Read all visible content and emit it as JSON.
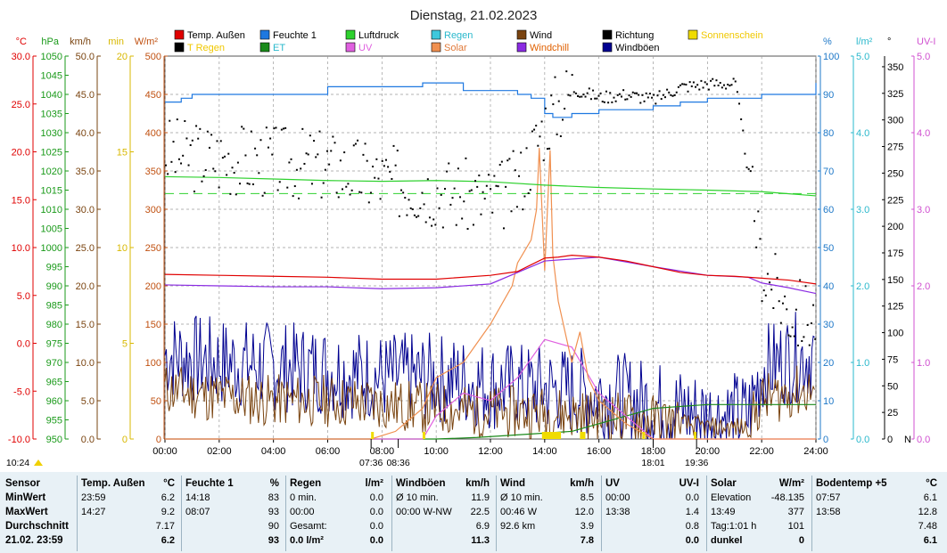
{
  "title": "Dienstag, 21.02.2023",
  "axis_units": {
    "temp": "°C",
    "hpa": "hPa",
    "kmh": "km/h",
    "min": "min",
    "wm2": "W/m²",
    "pct": "%",
    "lm2": "l/m²",
    "deg": "°",
    "uvi": "UV-I"
  },
  "axis_ticks": {
    "temp": [
      "30.0",
      "25.0",
      "20.0",
      "15.0",
      "10.0",
      "5.0",
      "0.0",
      "-5.0",
      "-10.0"
    ],
    "hpa": [
      "1050",
      "1045",
      "1040",
      "1035",
      "1030",
      "1025",
      "1020",
      "1015",
      "1010",
      "1005",
      "1000",
      "995",
      "990",
      "985",
      "980",
      "975",
      "970",
      "965",
      "960",
      "955",
      "950"
    ],
    "kmh": [
      "50.0",
      "45.0",
      "40.0",
      "35.0",
      "30.0",
      "25.0",
      "20.0",
      "15.0",
      "10.0",
      "5.0",
      "0.0"
    ],
    "min": [
      "20",
      "15",
      "10",
      "5",
      "0"
    ],
    "wm2": [
      "500",
      "450",
      "400",
      "350",
      "300",
      "250",
      "200",
      "150",
      "100",
      "50",
      "0"
    ],
    "pct": [
      "100",
      "90",
      "80",
      "70",
      "60",
      "50",
      "40",
      "30",
      "20",
      "10",
      "0"
    ],
    "lm2": [
      "5.0",
      "4.0",
      "3.0",
      "2.0",
      "1.0",
      "0.0"
    ],
    "deg": [
      "350",
      "325",
      "300",
      "275",
      "250",
      "225",
      "200",
      "175",
      "150",
      "125",
      "100",
      "75",
      "50",
      "25",
      "0"
    ],
    "deg_n": "N",
    "uvi": [
      "5.0",
      "4.0",
      "3.0",
      "2.0",
      "1.0",
      "0.0"
    ]
  },
  "legend": [
    {
      "label": "Temp. Außen",
      "color": "#e00000"
    },
    {
      "label": "Feuchte 1",
      "color": "#1e78e0"
    },
    {
      "label": "Luftdruck",
      "color": "#2ed12e"
    },
    {
      "label": "Regen",
      "color": "#3ec8dc"
    },
    {
      "label": "Wind",
      "color": "#7a4410"
    },
    {
      "label": "Richtung",
      "color": "#000000"
    },
    {
      "label": "Sonnenschein",
      "color": "#f0dc00"
    },
    {
      "label": "T Regen",
      "color": "#000000"
    },
    {
      "label": "ET",
      "color": "#1a8a1a"
    },
    {
      "label": "UV",
      "color": "#e060e0"
    },
    {
      "label": "Solar",
      "color": "#f09050"
    },
    {
      "label": "Windchill",
      "color": "#8a2be2"
    },
    {
      "label": "Windböen",
      "color": "#000090"
    }
  ],
  "time_labels": [
    "00:00",
    "02:00",
    "04:00",
    "06:00",
    "08:00",
    "10:00",
    "12:00",
    "14:00",
    "16:00",
    "18:00",
    "20:00",
    "22:00",
    "24:00"
  ],
  "markers": {
    "now": "10:24",
    "sunrise": "07:36",
    "civil_rise": "08:36",
    "sunset": "18:01",
    "civil_set": "19:36"
  },
  "colors": {
    "grid": "#9a9a9a",
    "table_bg": "#e8f1f6"
  },
  "chart_data": {
    "type": "line",
    "x_label": "",
    "x_range": [
      0,
      24
    ],
    "series": [
      {
        "name": "Temp. Außen",
        "unit": "°C",
        "x": [
          0,
          2,
          4,
          6,
          8,
          10,
          12,
          13,
          13.5,
          14,
          14.5,
          15,
          16,
          17,
          18,
          19,
          20,
          21,
          22,
          23,
          24
        ],
        "y": [
          7.2,
          7.1,
          7.0,
          6.9,
          6.7,
          6.7,
          7.1,
          7.5,
          8.2,
          8.9,
          9.0,
          9.2,
          9.0,
          8.6,
          8.0,
          7.4,
          7.1,
          7.0,
          6.8,
          6.6,
          6.2
        ]
      },
      {
        "name": "Feuchte 1",
        "unit": "%",
        "x": [
          0,
          0.6,
          1,
          4,
          6,
          9.5,
          11,
          13,
          13.5,
          14,
          14.3,
          15,
          16,
          17,
          18,
          19,
          20,
          21,
          22,
          23,
          24
        ],
        "y": [
          88,
          89,
          90,
          90,
          92,
          93,
          91,
          90,
          89,
          85,
          84,
          85,
          86,
          86,
          87,
          88,
          89,
          89,
          90,
          90,
          93
        ]
      },
      {
        "name": "Luftdruck",
        "unit": "hPa",
        "x": [
          0,
          2,
          4,
          6,
          8,
          10,
          12,
          14,
          16,
          18,
          20,
          22,
          24
        ],
        "y": [
          1018.5,
          1018.3,
          1017.9,
          1017.5,
          1017.3,
          1017.5,
          1017.2,
          1016.3,
          1015.7,
          1015.3,
          1015.0,
          1014.6,
          1013.5
        ]
      },
      {
        "name": "Windchill",
        "unit": "°C",
        "x": [
          0,
          2,
          4,
          6,
          8,
          10,
          12,
          14,
          16,
          18,
          20,
          21.5,
          22,
          23,
          24
        ],
        "y": [
          6.1,
          6.0,
          5.9,
          5.9,
          5.7,
          5.8,
          6.2,
          8.6,
          9.0,
          8.0,
          7.1,
          6.9,
          6.3,
          5.8,
          5.2
        ]
      },
      {
        "name": "Solar",
        "unit": "W/m²",
        "x": [
          0,
          7.6,
          8.5,
          9.5,
          10,
          11,
          12,
          12.8,
          13,
          13.5,
          13.7,
          13.8,
          14,
          14.2,
          14.3,
          14.5,
          15,
          15.3,
          15.6,
          16,
          17,
          18,
          19,
          24
        ],
        "y": [
          0,
          0,
          10,
          40,
          80,
          100,
          150,
          200,
          230,
          260,
          300,
          380,
          220,
          377,
          240,
          180,
          100,
          140,
          80,
          50,
          20,
          0,
          0,
          0
        ]
      },
      {
        "name": "Wind",
        "unit": "km/h",
        "x": [
          0,
          2,
          4,
          6,
          8,
          10,
          12,
          14,
          16,
          18,
          20,
          21.5,
          22,
          23,
          24
        ],
        "y": [
          6.5,
          5.5,
          5.0,
          5.0,
          4.5,
          4.0,
          3.5,
          3.5,
          3.0,
          2.5,
          1.5,
          1.5,
          5.0,
          6.0,
          6.5
        ]
      },
      {
        "name": "Windböen",
        "unit": "km/h",
        "x": [
          0,
          2,
          4,
          6,
          8,
          10,
          12,
          14,
          16,
          18,
          20,
          21.5,
          22,
          23,
          24
        ],
        "y": [
          11,
          10,
          9.5,
          9,
          8,
          8,
          7,
          6.5,
          6,
          4.5,
          3,
          3,
          9,
          10.5,
          11
        ]
      },
      {
        "name": "Richtung",
        "unit": "°",
        "x": [
          0,
          2,
          4,
          6,
          8,
          10,
          12,
          13,
          14,
          15,
          16,
          17,
          18,
          19,
          20,
          21,
          22,
          23,
          24
        ],
        "y": [
          270,
          265,
          262,
          258,
          245,
          235,
          225,
          240,
          300,
          330,
          322,
          325,
          320,
          332,
          335,
          335,
          160,
          120,
          115
        ]
      },
      {
        "name": "UV",
        "unit": "UV-I",
        "x": [
          0,
          9.5,
          10,
          11,
          12,
          13,
          14,
          15,
          16,
          17,
          18,
          24
        ],
        "y": [
          0,
          0,
          0.3,
          0.6,
          0.5,
          0.8,
          1.3,
          1.2,
          0.6,
          0.3,
          0,
          0
        ]
      },
      {
        "name": "ET",
        "unit": "l/m²",
        "x": [
          0,
          10,
          11.5,
          15,
          18,
          20,
          24
        ],
        "y": [
          0,
          0,
          0.02,
          0.1,
          0.4,
          0.45,
          0.45
        ]
      }
    ]
  },
  "table": {
    "row_labels": [
      "Sensor",
      "MinWert",
      "MaxWert",
      "Durchschnitt",
      "21.02. 23:59"
    ],
    "columns": [
      {
        "head": "Temp. Außen",
        "unit": "°C",
        "rows": [
          [
            "23:59",
            "6.2"
          ],
          [
            "14:27",
            "9.2"
          ],
          [
            "",
            "7.17"
          ],
          [
            "",
            "6.2"
          ]
        ]
      },
      {
        "head": "Feuchte 1",
        "unit": "%",
        "rows": [
          [
            "14:18",
            "83"
          ],
          [
            "08:07",
            "93"
          ],
          [
            "",
            "90"
          ],
          [
            "",
            "93"
          ]
        ]
      },
      {
        "head": "Regen",
        "unit": "l/m²",
        "rows": [
          [
            "0 min.",
            "0.0"
          ],
          [
            "00:00",
            "0.0"
          ],
          [
            "Gesamt:",
            "0.0"
          ],
          [
            "0.0 l/m²",
            "0.0"
          ]
        ]
      },
      {
        "head": "Windböen",
        "unit": "km/h",
        "rows": [
          [
            "Ø 10 min.",
            "11.9"
          ],
          [
            "00:00  W-NW",
            "22.5"
          ],
          [
            "",
            "6.9"
          ],
          [
            "",
            "11.3"
          ]
        ]
      },
      {
        "head": "Wind",
        "unit": "km/h",
        "rows": [
          [
            "Ø 10 min.",
            "8.5"
          ],
          [
            "00:46   W",
            "12.0"
          ],
          [
            "92.6 km",
            "3.9"
          ],
          [
            "",
            "7.8"
          ]
        ]
      },
      {
        "head": "UV",
        "unit": "UV-I",
        "rows": [
          [
            "00:00",
            "0.0"
          ],
          [
            "13:38",
            "1.4"
          ],
          [
            "",
            "0.8"
          ],
          [
            "",
            "0.0"
          ]
        ]
      },
      {
        "head": "Solar",
        "unit": "W/m²",
        "rows": [
          [
            "Elevation",
            "-48.135"
          ],
          [
            "13:49",
            "377"
          ],
          [
            "Tag:1:01 h",
            "101"
          ],
          [
            "dunkel",
            "0"
          ]
        ]
      },
      {
        "head": "Bodentemp +5",
        "unit": "°C",
        "rows": [
          [
            "07:57",
            "6.1"
          ],
          [
            "13:58",
            "12.8"
          ],
          [
            "",
            "7.48"
          ],
          [
            "",
            "6.1"
          ]
        ]
      }
    ]
  }
}
